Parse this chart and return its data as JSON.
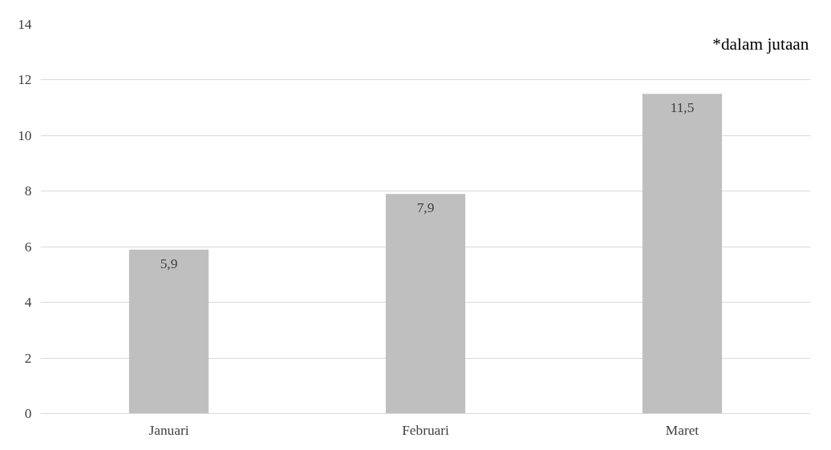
{
  "chart_data": {
    "type": "bar",
    "categories": [
      "Januari",
      "Februari",
      "Maret"
    ],
    "values": [
      5.9,
      7.9,
      11.5
    ],
    "value_labels": [
      "5,9",
      "7,9",
      "11,5"
    ],
    "color": "#bfbfbf",
    "ylim": [
      0,
      14
    ],
    "yticks": [
      0,
      2,
      4,
      6,
      8,
      10,
      12,
      14
    ],
    "grid": "y",
    "annotations": [
      "*dalam jutaan"
    ]
  }
}
